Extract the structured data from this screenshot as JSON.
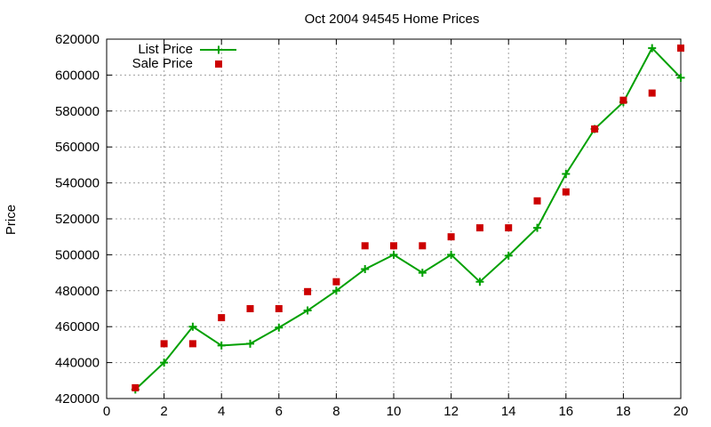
{
  "chart_data": {
    "type": "line",
    "title": "Oct 2004 94545 Home Prices",
    "xlabel": "",
    "ylabel": "Price",
    "xlim": [
      0,
      20
    ],
    "ylim": [
      420000,
      620000
    ],
    "x_ticks": [
      0,
      2,
      4,
      6,
      8,
      10,
      12,
      14,
      16,
      18,
      20
    ],
    "y_ticks": [
      420000,
      440000,
      460000,
      480000,
      500000,
      520000,
      540000,
      560000,
      580000,
      600000,
      620000
    ],
    "grid": true,
    "legend_position": "top-left",
    "series": [
      {
        "name": "List Price",
        "style": "line+cross",
        "color": "#00a000",
        "x": [
          1,
          2,
          3,
          4,
          5,
          6,
          7,
          8,
          9,
          10,
          11,
          12,
          13,
          14,
          15,
          16,
          17,
          18,
          19,
          20
        ],
        "y": [
          425000,
          440000,
          460000,
          449500,
          450500,
          459500,
          469000,
          480000,
          492000,
          500000,
          490000,
          500000,
          485000,
          499500,
          515000,
          545000,
          570000,
          585000,
          615000,
          598500
        ]
      },
      {
        "name": "Sale Price",
        "style": "square-marker",
        "color": "#cc0000",
        "x": [
          1,
          2,
          3,
          4,
          5,
          6,
          7,
          8,
          9,
          10,
          11,
          12,
          13,
          14,
          15,
          16,
          17,
          18,
          19,
          20
        ],
        "y": [
          426000,
          450500,
          450500,
          465000,
          470000,
          470000,
          479500,
          485000,
          505000,
          505000,
          505000,
          510000,
          515000,
          515000,
          530000,
          535000,
          570000,
          586000,
          590000,
          615000
        ]
      }
    ]
  }
}
